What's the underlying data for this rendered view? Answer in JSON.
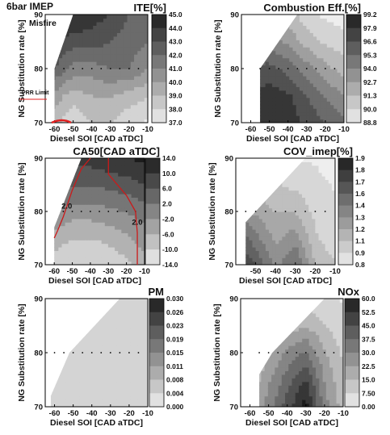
{
  "figure": {
    "header": "6bar IMEP",
    "header_color": "#e02020",
    "misfire_label": "Misfire",
    "prr_label": "PRR Limit",
    "prr_color": "#e02020"
  },
  "chart_data": [
    {
      "type": "heatmap",
      "title": "ITE[%]",
      "xlabel": "Diesel SOI [CAD aTDC]",
      "ylabel": "NG Substitution rate [%]",
      "xlim": [
        -65,
        -10
      ],
      "ylim": [
        70,
        90
      ],
      "x_ticks": [
        -60,
        -50,
        -40,
        -30,
        -20,
        -10
      ],
      "y_ticks": [
        70,
        80,
        90
      ],
      "colorbar_ticks": [
        "45.0",
        "44.0",
        "43.0",
        "42.0",
        "41.0",
        "40.0",
        "39.0",
        "38.0",
        "37.0"
      ],
      "z_range": [
        37.0,
        45.0
      ],
      "z_grid": [
        {
          "ng": 70,
          "values": [
            39.0,
            37.5,
            38.5,
            38.5,
            37.8,
            37.3
          ]
        },
        {
          "ng": 75,
          "values": [
            40.0,
            39.0,
            39.5,
            39.6,
            39.0,
            38.6
          ]
        },
        {
          "ng": 80,
          "values": [
            42.5,
            41.0,
            41.0,
            41.5,
            41.5,
            40.5
          ]
        },
        {
          "ng": 85,
          "values": [
            43.5,
            43.0,
            43.0,
            42.5,
            42.0,
            41.5
          ]
        },
        {
          "ng": 90,
          "values": [
            44.5,
            44.5,
            44.0,
            43.5,
            42.5,
            42.0
          ]
        }
      ],
      "measured_points": {
        "ng": 80,
        "soi": [
          -55,
          -50,
          -45,
          -40,
          -35,
          -30,
          -25,
          -20,
          -15
        ]
      }
    },
    {
      "type": "heatmap",
      "title": "Combustion Eff.[%]",
      "xlabel": "Diesel SOI [CAD aTDC]",
      "ylabel": "NG Substitution rate [%]",
      "xlim": [
        -65,
        -10
      ],
      "ylim": [
        70,
        90
      ],
      "x_ticks": [
        -60,
        -50,
        -40,
        -30,
        -20,
        -10
      ],
      "y_ticks": [
        70,
        80,
        90
      ],
      "colorbar_ticks": [
        "99.2",
        "97.9",
        "96.6",
        "95.3",
        "94.0",
        "92.7",
        "91.3",
        "90.0",
        "88.8"
      ],
      "z_range": [
        88.8,
        99.2
      ],
      "z_grid": [
        {
          "ng": 70,
          "values": [
            98.5,
            98.5,
            98.0,
            97.0,
            96.0,
            95.0
          ]
        },
        {
          "ng": 75,
          "values": [
            97.5,
            98.0,
            97.5,
            96.0,
            94.5,
            93.5
          ]
        },
        {
          "ng": 80,
          "values": [
            96.0,
            96.5,
            95.5,
            94.0,
            92.5,
            91.5
          ]
        },
        {
          "ng": 85,
          "values": [
            94.5,
            94.0,
            93.0,
            91.5,
            90.5,
            90.0
          ]
        },
        {
          "ng": 90,
          "values": [
            93.5,
            92.5,
            91.5,
            90.0,
            89.2,
            88.8
          ]
        }
      ],
      "measured_points": {
        "ng": 80,
        "soi": [
          -55,
          -50,
          -45,
          -40,
          -35,
          -30,
          -25,
          -20,
          -15
        ]
      }
    },
    {
      "type": "heatmap",
      "title": "CA50[CAD aTDC]",
      "xlabel": "Diesel SOI [CAD aTDC]",
      "ylabel": "NG Substitution rate [%]",
      "xlim": [
        -65,
        -10
      ],
      "ylim": [
        70,
        90
      ],
      "x_ticks": [
        -60,
        -50,
        -40,
        -30,
        -20,
        -10
      ],
      "y_ticks": [
        70,
        80,
        90
      ],
      "colorbar_ticks": [
        "14.0",
        "10.0",
        "6.0",
        "2.0",
        "-2.0",
        "-6.0",
        "-10.0",
        "-14.0"
      ],
      "z_range": [
        -14.0,
        14.0
      ],
      "contour_labels": [
        "2.0",
        "2.0"
      ],
      "z_grid": [
        {
          "ng": 70,
          "values": [
            -10.0,
            -12.0,
            -12.0,
            -11.0,
            -9.0,
            -6.0
          ]
        },
        {
          "ng": 75,
          "values": [
            -6.0,
            -8.0,
            -8.0,
            -7.0,
            -5.0,
            -2.0
          ]
        },
        {
          "ng": 80,
          "values": [
            0.0,
            -2.0,
            -2.0,
            -1.0,
            0.0,
            2.0
          ]
        },
        {
          "ng": 85,
          "values": [
            6.0,
            4.0,
            4.0,
            5.0,
            6.0,
            8.0
          ]
        },
        {
          "ng": 90,
          "values": [
            12.0,
            10.0,
            10.0,
            11.0,
            12.0,
            13.0
          ]
        }
      ],
      "measured_points": {
        "ng": 80,
        "soi": [
          -55,
          -50,
          -45,
          -40,
          -35,
          -30,
          -25,
          -20,
          -15
        ]
      }
    },
    {
      "type": "heatmap",
      "title": "COV_imep[%]",
      "xlabel": "Diesel SOI [CAD aTDC]",
      "ylabel": "NG Substitution rate [%]",
      "xlim": [
        -60,
        -10
      ],
      "ylim": [
        70,
        90
      ],
      "x_ticks": [
        -50,
        -40,
        -30,
        -20,
        -10
      ],
      "y_ticks": [
        70,
        80,
        90
      ],
      "colorbar_ticks": [
        "1.9",
        "1.8",
        "1.7",
        "1.6",
        "1.4",
        "1.3",
        "1.2",
        "1.1",
        "0.9",
        "0.8"
      ],
      "z_range": [
        0.8,
        1.9
      ],
      "z_grid": [
        {
          "ng": 70,
          "values": [
            1.8,
            1.6,
            1.3,
            1.5,
            1.1,
            1.0
          ]
        },
        {
          "ng": 75,
          "values": [
            1.6,
            1.4,
            1.2,
            1.3,
            1.0,
            0.9
          ]
        },
        {
          "ng": 80,
          "values": [
            1.3,
            1.2,
            1.1,
            1.1,
            0.95,
            0.9
          ]
        },
        {
          "ng": 85,
          "values": [
            1.1,
            1.0,
            1.0,
            0.95,
            0.9,
            0.85
          ]
        },
        {
          "ng": 90,
          "values": [
            0.9,
            0.9,
            0.9,
            0.85,
            0.85,
            0.8
          ]
        }
      ],
      "measured_points": {
        "ng": 80,
        "soi": [
          -55,
          -50,
          -45,
          -40,
          -35,
          -30,
          -25,
          -20,
          -15
        ]
      }
    },
    {
      "type": "heatmap",
      "title": "PM",
      "xlabel": "Diesel SOI [CAD aTDC]",
      "ylabel": "NG Substitution rate [%]",
      "xlim": [
        -65,
        -10
      ],
      "ylim": [
        70,
        90
      ],
      "x_ticks": [
        -60,
        -50,
        -40,
        -30,
        -20,
        -10
      ],
      "y_ticks": [
        70,
        80,
        90
      ],
      "colorbar_ticks": [
        "0.030",
        "0.026",
        "0.023",
        "0.019",
        "0.015",
        "0.011",
        "0.008",
        "0.004",
        "0.000"
      ],
      "z_range": [
        0.0,
        0.03
      ],
      "z_grid": [
        {
          "ng": 70,
          "values": [
            0.004,
            0.004,
            0.004,
            0.004,
            0.004,
            0.004
          ]
        },
        {
          "ng": 75,
          "values": [
            0.004,
            0.004,
            0.004,
            0.004,
            0.004,
            0.004
          ]
        },
        {
          "ng": 80,
          "values": [
            0.004,
            0.004,
            0.004,
            0.004,
            0.004,
            0.004
          ]
        },
        {
          "ng": 85,
          "values": [
            0.004,
            0.004,
            0.004,
            0.004,
            0.004,
            0.004
          ]
        },
        {
          "ng": 90,
          "values": [
            0.004,
            0.004,
            0.004,
            0.004,
            0.004,
            0.004
          ]
        }
      ],
      "measured_points": {
        "ng": 80,
        "soi": [
          -60,
          -55,
          -50,
          -45,
          -40,
          -35,
          -30,
          -25,
          -20,
          -15
        ]
      }
    },
    {
      "type": "heatmap",
      "title": "NOx",
      "xlabel": "Diesel SOI [CAD aTDC]",
      "ylabel": "NG Substitution rate [%]",
      "xlim": [
        -65,
        -10
      ],
      "ylim": [
        70,
        90
      ],
      "x_ticks": [
        -60,
        -50,
        -40,
        -30,
        -20,
        -10
      ],
      "y_ticks": [
        70,
        80,
        90
      ],
      "colorbar_ticks": [
        "60.0",
        "52.5",
        "45.0",
        "37.5",
        "30.0",
        "22.5",
        "15.0",
        "7.50",
        "0.00"
      ],
      "z_range": [
        0.0,
        60.0
      ],
      "z_grid": [
        {
          "ng": 70,
          "values": [
            15.0,
            30.0,
            45.0,
            60.0,
            30.0,
            15.0
          ]
        },
        {
          "ng": 75,
          "values": [
            12.0,
            25.0,
            38.0,
            50.0,
            26.0,
            12.0
          ]
        },
        {
          "ng": 80,
          "values": [
            8.0,
            18.0,
            28.0,
            35.0,
            20.0,
            10.0
          ]
        },
        {
          "ng": 85,
          "values": [
            5.0,
            10.0,
            15.0,
            18.0,
            12.0,
            6.0
          ]
        },
        {
          "ng": 90,
          "values": [
            2.0,
            4.0,
            6.0,
            8.0,
            5.0,
            3.0
          ]
        }
      ],
      "measured_points": {
        "ng": 80,
        "soi": [
          -55,
          -50,
          -45,
          -40,
          -35,
          -30,
          -25,
          -20,
          -15
        ]
      }
    }
  ]
}
